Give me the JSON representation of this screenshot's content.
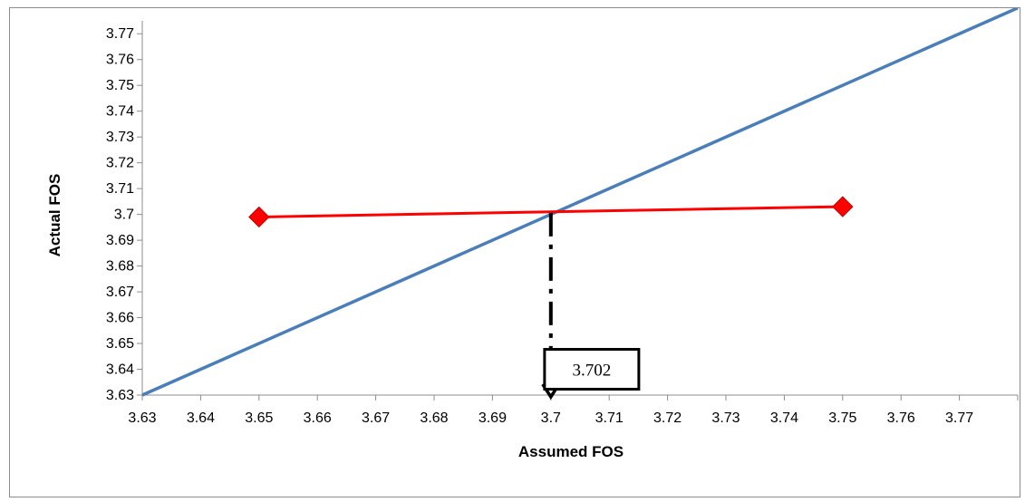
{
  "chart_data": {
    "type": "line",
    "title": "",
    "xlabel": "Assumed FOS",
    "ylabel": "Actual FOS",
    "xlim": [
      3.63,
      3.78
    ],
    "ylim": [
      3.63,
      3.775
    ],
    "x_ticks": [
      "3.63",
      "3.64",
      "3.65",
      "3.66",
      "3.67",
      "3.68",
      "3.69",
      "3.7",
      "3.71",
      "3.72",
      "3.73",
      "3.74",
      "3.75",
      "3.76",
      "3.77"
    ],
    "y_ticks": [
      "3.63",
      "3.64",
      "3.65",
      "3.66",
      "3.67",
      "3.68",
      "3.69",
      "3.7",
      "3.71",
      "3.72",
      "3.73",
      "3.74",
      "3.75",
      "3.76",
      "3.77"
    ],
    "grid": false,
    "legend": "none",
    "series": [
      {
        "color": "#4a7ebb",
        "marker": "none",
        "x": [
          3.63,
          3.78
        ],
        "y": [
          3.63,
          3.78
        ]
      },
      {
        "color": "#ff0000",
        "marker": "diamond",
        "x": [
          3.65,
          3.75
        ],
        "y": [
          3.699,
          3.703
        ]
      }
    ],
    "annotations": [
      {
        "type": "dashdot-arrow",
        "x": 3.7,
        "from_y": 3.7006,
        "to_y": 3.63
      },
      {
        "type": "boxed-label",
        "text": "3.702",
        "x": 3.707,
        "y": 3.64
      }
    ]
  }
}
